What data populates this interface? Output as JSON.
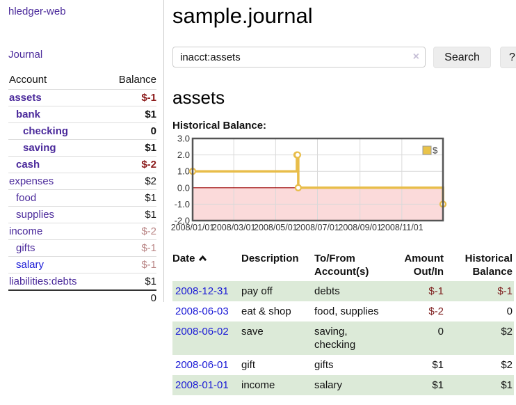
{
  "sidebar": {
    "brand": "hledger-web",
    "nav": [
      {
        "label": "Journal"
      }
    ],
    "accounts_table": {
      "account_header": "Account",
      "balance_header": "Balance",
      "rows": [
        {
          "name": "assets",
          "balance": "$-1",
          "depth": 1,
          "bold": true,
          "balance_style": "neg-strong",
          "visited": true
        },
        {
          "name": "bank",
          "balance": "$1",
          "depth": 2,
          "bold": true,
          "balance_style": "",
          "visited": true
        },
        {
          "name": "checking",
          "balance": "0",
          "depth": 3,
          "bold": true,
          "balance_style": "",
          "visited": true
        },
        {
          "name": "saving",
          "balance": "$1",
          "depth": 3,
          "bold": true,
          "balance_style": "",
          "visited": true
        },
        {
          "name": "cash",
          "balance": "$-2",
          "depth": 2,
          "bold": true,
          "balance_style": "neg-strong",
          "visited": true
        },
        {
          "name": "expenses",
          "balance": "$2",
          "depth": 1,
          "bold": false,
          "balance_style": "",
          "visited": true
        },
        {
          "name": "food",
          "balance": "$1",
          "depth": 2,
          "bold": false,
          "balance_style": "",
          "visited": true
        },
        {
          "name": "supplies",
          "balance": "$1",
          "depth": 2,
          "bold": false,
          "balance_style": "",
          "visited": true
        },
        {
          "name": "income",
          "balance": "$-2",
          "depth": 1,
          "bold": false,
          "balance_style": "neg-soft",
          "visited": true
        },
        {
          "name": "gifts",
          "balance": "$-1",
          "depth": 2,
          "bold": false,
          "balance_style": "neg-soft",
          "visited": true
        },
        {
          "name": "salary",
          "balance": "$-1",
          "depth": 2,
          "bold": false,
          "balance_style": "neg-soft",
          "visited": false
        },
        {
          "name": "liabilities:debts",
          "balance": "$1",
          "depth": 1,
          "bold": false,
          "balance_style": "",
          "visited": true
        }
      ],
      "total": "0"
    }
  },
  "header": {
    "title": "sample.journal"
  },
  "search": {
    "value": "inacct:assets",
    "clear_icon": "×",
    "button_label": "Search",
    "help_label": "?"
  },
  "account_page": {
    "heading": "assets",
    "chart_label": "Historical Balance:"
  },
  "chart_data": {
    "type": "line",
    "step": true,
    "title": "Historical Balance:",
    "legend": [
      {
        "name": "$",
        "color": "#e9c349"
      }
    ],
    "legend_position": "top-right",
    "x_ticks": [
      "2008/01/01",
      "2008/03/01",
      "2008/05/01",
      "2008/07/01",
      "2008/09/01",
      "2008/11/01"
    ],
    "x_range": [
      "2008-01-01",
      "2008-12-31"
    ],
    "y_ticks": [
      "3.0",
      "2.0",
      "1.0",
      "0.0",
      "-1.0",
      "-2.0"
    ],
    "ylim": [
      -2,
      3
    ],
    "grid": true,
    "series": [
      {
        "name": "$",
        "points": [
          [
            "2008-01-01",
            1
          ],
          [
            "2008-06-01",
            2
          ],
          [
            "2008-06-02",
            2
          ],
          [
            "2008-06-03",
            0
          ],
          [
            "2008-12-31",
            -1
          ]
        ]
      }
    ],
    "colors": {
      "line": "#e8bd4a",
      "marker_fill": "#ffffff",
      "negative_region": "#fbdada",
      "zero_line": "#9c0000",
      "grid_line": "#d9d9d9",
      "plot_border": "#545454"
    }
  },
  "register_table": {
    "headers": [
      {
        "lines": [
          "Date"
        ],
        "sort": "asc",
        "align": "left"
      },
      {
        "lines": [
          "Description"
        ],
        "align": "left"
      },
      {
        "lines": [
          "To/From",
          "Account(s)"
        ],
        "align": "left"
      },
      {
        "lines": [
          "Amount",
          "Out/In"
        ],
        "align": "right"
      },
      {
        "lines": [
          "Historical",
          "Balance"
        ],
        "align": "right"
      }
    ],
    "rows": [
      {
        "date": "2008-12-31",
        "description": "pay off",
        "accounts": [
          "debts"
        ],
        "amount": "$-1",
        "amount_negative": true,
        "balance": "$-1",
        "balance_negative": true,
        "striped": true
      },
      {
        "date": "2008-06-03",
        "description": "eat & shop",
        "accounts": [
          "food, supplies"
        ],
        "amount": "$-2",
        "amount_negative": true,
        "balance": "0",
        "balance_negative": false,
        "striped": false
      },
      {
        "date": "2008-06-02",
        "description": "save",
        "accounts": [
          "saving,",
          "checking"
        ],
        "amount": "0",
        "amount_negative": false,
        "balance": "$2",
        "balance_negative": false,
        "striped": true
      },
      {
        "date": "2008-06-01",
        "description": "gift",
        "accounts": [
          "gifts"
        ],
        "amount": "$1",
        "amount_negative": false,
        "balance": "$2",
        "balance_negative": false,
        "striped": false
      },
      {
        "date": "2008-01-01",
        "description": "income",
        "accounts": [
          "salary"
        ],
        "amount": "$1",
        "amount_negative": false,
        "balance": "$1",
        "balance_negative": false,
        "striped": true
      }
    ]
  },
  "colors": {
    "link_purple": "#4b2a9b",
    "link_blue": "#1a1ad6",
    "negative_strong": "#8b1a1a",
    "negative_soft": "#b98585",
    "stripe_green": "#dcead8"
  }
}
